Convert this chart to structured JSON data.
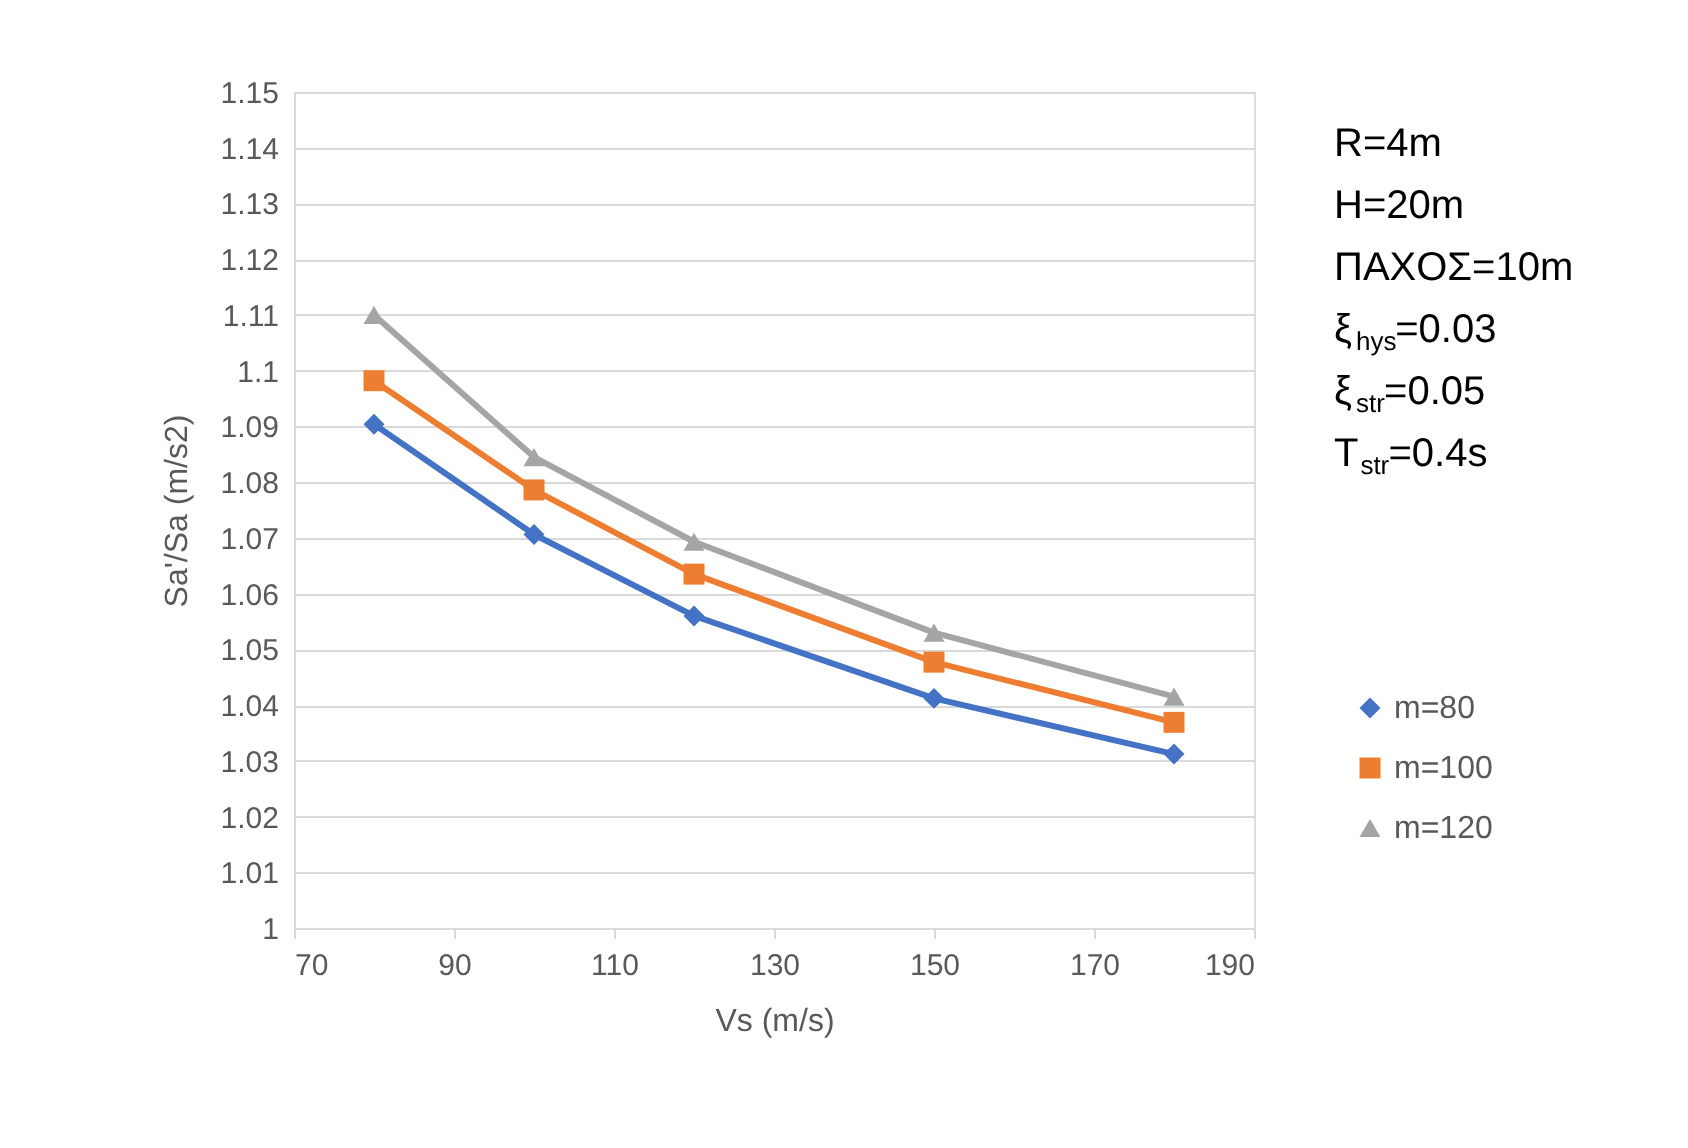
{
  "chart_data": {
    "type": "line",
    "xlabel": "Vs (m/s)",
    "ylabel": "Sa'/Sa (m/s2)",
    "x": [
      80,
      100,
      120,
      150,
      180
    ],
    "series": [
      {
        "name": "m=80",
        "color": "#4472c4",
        "marker": "diamond",
        "values": [
          1.0904,
          1.0706,
          1.056,
          1.0412,
          1.0312
        ]
      },
      {
        "name": "m=100",
        "color": "#ed7d31",
        "marker": "square",
        "values": [
          1.0982,
          1.0786,
          1.0635,
          1.0477,
          1.0369
        ]
      },
      {
        "name": "m=120",
        "color": "#a5a5a5",
        "marker": "triangle",
        "values": [
          1.11,
          1.0845,
          1.0693,
          1.053,
          1.0415
        ]
      }
    ],
    "xlim": [
      70,
      190
    ],
    "xticks": [
      70,
      90,
      110,
      130,
      150,
      170,
      190
    ],
    "ylim": [
      1,
      1.15
    ],
    "yticks": [
      1,
      1.01,
      1.02,
      1.03,
      1.04,
      1.05,
      1.06,
      1.07,
      1.08,
      1.09,
      1.1,
      1.11,
      1.12,
      1.13,
      1.14,
      1.15
    ],
    "grid": "y",
    "legend": "right",
    "line_style": "solid",
    "annotations": [
      "R=4m",
      "H=20m",
      "ΠΑΧΟΣ=10m",
      "ξ$_{hys}$=0.03",
      "ξ$_{str}$=0.05",
      "T$_{str}$=0.4s"
    ]
  }
}
